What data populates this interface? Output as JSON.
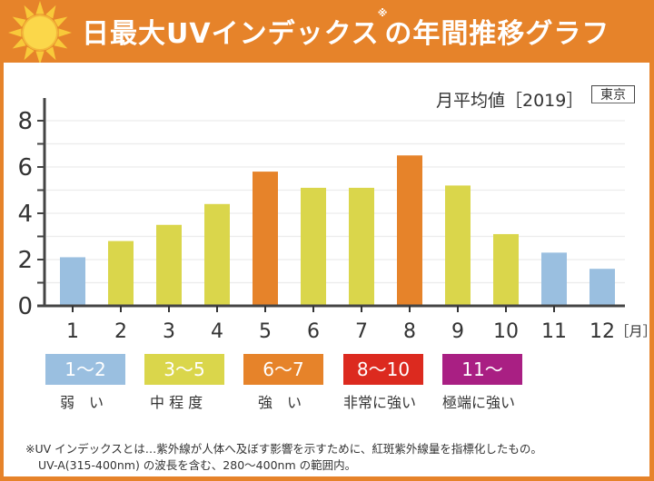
{
  "header": {
    "title_pre": "日最大UVインデックス",
    "title_note": "※",
    "title_post": "の年間推移グラフ",
    "icon": "sun-icon"
  },
  "colors": {
    "weak": "#9abfe0",
    "moderate": "#dad64b",
    "strong": "#e6832a",
    "very_strong": "#dc2a1f",
    "extreme": "#a91f83",
    "brand": "#e6832a"
  },
  "subtitle": "月平均値［2019］",
  "region": "東京",
  "chart_data": {
    "type": "bar",
    "title": "日最大UVインデックスの年間推移グラフ",
    "subtitle": "月平均値［2019］",
    "region": "東京",
    "categories": [
      "1",
      "2",
      "3",
      "4",
      "5",
      "6",
      "7",
      "8",
      "9",
      "10",
      "11",
      "12"
    ],
    "values": [
      2.1,
      2.8,
      3.5,
      4.4,
      5.8,
      5.1,
      5.1,
      6.5,
      5.2,
      3.1,
      2.3,
      1.6
    ],
    "bar_levels": [
      "weak",
      "moderate",
      "moderate",
      "moderate",
      "strong",
      "moderate",
      "moderate",
      "strong",
      "moderate",
      "moderate",
      "weak",
      "weak"
    ],
    "xlabel": "［月］",
    "ylabel": "",
    "ylim": [
      0,
      8
    ],
    "yticks": [
      "0",
      "2",
      "4",
      "6",
      "8"
    ],
    "minor_yticks": [
      1,
      3,
      5,
      7
    ],
    "grid": true,
    "legend": "bottom"
  },
  "legend": [
    {
      "key": "weak",
      "range": "1〜2",
      "label": "弱　い"
    },
    {
      "key": "moderate",
      "range": "3〜5",
      "label": "中 程 度"
    },
    {
      "key": "strong",
      "range": "6〜7",
      "label": "強　い"
    },
    {
      "key": "very_strong",
      "range": "8〜10",
      "label": "非常に強い"
    },
    {
      "key": "extreme",
      "range": "11〜",
      "label": "極端に強い"
    }
  ],
  "footnote": {
    "line1": "※UV インデックスとは…紫外線が人体へ及ぼす影響を示すために、紅斑紫外線量を指標化したもの。",
    "line2": "UV-A(315-400nm) の波長を含む、280〜400nm の範囲内。"
  }
}
